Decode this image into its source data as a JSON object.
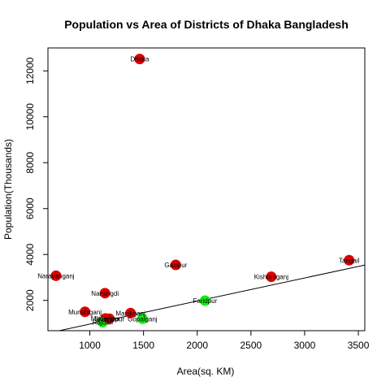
{
  "chart_data": {
    "type": "scatter",
    "title": "Population vs Area of Districts of Dhaka Bangladesh",
    "xlabel": "Area(sq. KM)",
    "ylabel": "Population(Thousands)",
    "xlim": [
      610,
      3560
    ],
    "ylim": [
      680,
      13000
    ],
    "x_ticks": [
      1000,
      1500,
      2000,
      2500,
      3000,
      3500
    ],
    "y_ticks": [
      2000,
      4000,
      6000,
      8000,
      10000,
      12000
    ],
    "grid": false,
    "legend": "none",
    "colors": {
      "high": "#dd0000",
      "low": "#11ee11",
      "line": "#000000"
    },
    "points": [
      {
        "label": "Dhaka",
        "x": 1464,
        "y": 12517,
        "color": "high"
      },
      {
        "label": "Gazipur",
        "x": 1800,
        "y": 3548,
        "color": "high"
      },
      {
        "label": "Narayanganj",
        "x": 685,
        "y": 3074,
        "color": "high"
      },
      {
        "label": "Tangail",
        "x": 3414,
        "y": 3750,
        "color": "high"
      },
      {
        "label": "Kishoreganj",
        "x": 2689,
        "y": 3028,
        "color": "high"
      },
      {
        "label": "Narsingdi",
        "x": 1141,
        "y": 2315,
        "color": "high"
      },
      {
        "label": "Munshiganj",
        "x": 955,
        "y": 1502,
        "color": "high"
      },
      {
        "label": "Manikganj",
        "x": 1379,
        "y": 1447,
        "color": "high"
      },
      {
        "label": "Faridpur",
        "x": 2073,
        "y": 1989,
        "color": "low"
      },
      {
        "label": "Madaripur",
        "x": 1145,
        "y": 1212,
        "color": "high"
      },
      {
        "label": "Rajbari",
        "x": 1119,
        "y": 1050,
        "color": "low"
      },
      {
        "label": "Shariatpur",
        "x": 1182,
        "y": 1200,
        "color": "high"
      },
      {
        "label": "Gopalganj",
        "x": 1490,
        "y": 1200,
        "color": "low"
      }
    ],
    "regression_line": {
      "x1": 610,
      "y1": 575,
      "x2": 3560,
      "y2": 3540
    }
  }
}
